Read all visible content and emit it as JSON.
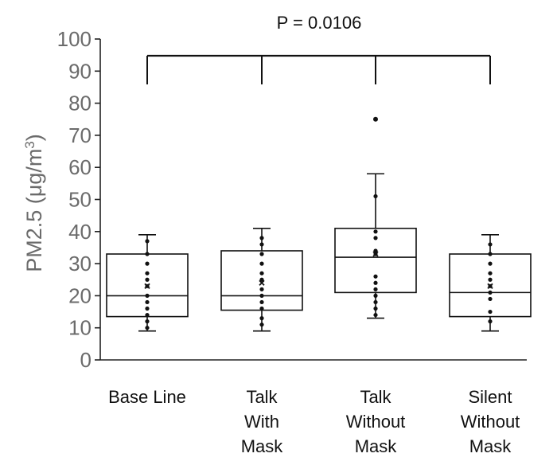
{
  "chart_data": {
    "type": "box",
    "ylabel_main": "PM2.5 (μg/m",
    "ylabel_sup": "3",
    "ylabel_close": ")",
    "ylim": [
      0,
      100
    ],
    "yticks": [
      0,
      10,
      20,
      30,
      40,
      50,
      60,
      70,
      80,
      90,
      100
    ],
    "significance": {
      "label": "P = 0.0106"
    },
    "categories": [
      {
        "lines": [
          "Base Line"
        ],
        "min": 9,
        "q1": 13.5,
        "median": 20,
        "q3": 33,
        "max": 39,
        "mean": 23,
        "points": [
          37,
          33,
          30,
          27,
          25,
          23,
          20,
          18,
          16,
          14,
          12,
          10
        ],
        "outliers": []
      },
      {
        "lines": [
          "Talk",
          "With",
          "Mask"
        ],
        "min": 9,
        "q1": 15.5,
        "median": 20,
        "q3": 34,
        "max": 41,
        "mean": 24,
        "points": [
          38,
          36,
          33,
          30,
          27,
          25,
          22,
          20,
          18,
          16,
          13,
          11
        ],
        "outliers": []
      },
      {
        "lines": [
          "Talk",
          "Without",
          "Mask"
        ],
        "min": 13,
        "q1": 21,
        "median": 32,
        "q3": 41,
        "max": 58,
        "mean": 33,
        "points": [
          51,
          40,
          38,
          34,
          33,
          26,
          24,
          22,
          20,
          18,
          16,
          14
        ],
        "outliers": [
          75
        ]
      },
      {
        "lines": [
          "Silent",
          "Without",
          "Mask"
        ],
        "min": 9,
        "q1": 13.5,
        "median": 21,
        "q3": 33,
        "max": 39,
        "mean": 23,
        "points": [
          36,
          33,
          30,
          27,
          25,
          23,
          21,
          19,
          15,
          12
        ],
        "outliers": []
      }
    ],
    "colors": {
      "axis": "#222222",
      "labels": "#6b6b6b",
      "marks": "#111111"
    }
  }
}
